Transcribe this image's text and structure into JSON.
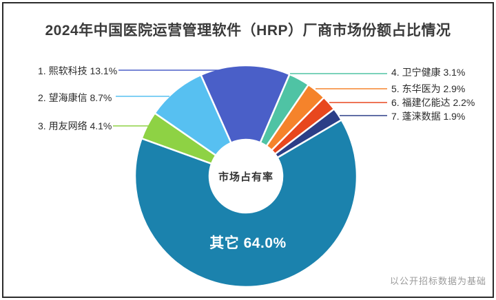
{
  "title": "2024年中国医院运营管理软件（HRP）厂商市场份额占比情况",
  "footnote": "以公开招标数据为基础",
  "chart_data": {
    "type": "pie",
    "donut": true,
    "title": "2024年中国医院运营管理软件（HRP）厂商市场份额占比情况",
    "center_label": "市场占有率",
    "inside_label": "其它 64.0%",
    "start_angle_deg": -24,
    "legend_position": "callouts",
    "slices": [
      {
        "name": "熙软科技",
        "value": 13.1,
        "color": "#4a5fc8"
      },
      {
        "name": "卫宁健康",
        "value": 3.1,
        "color": "#4fc3a4"
      },
      {
        "name": "东华医为",
        "value": 2.9,
        "color": "#f5832b"
      },
      {
        "name": "福建亿能达",
        "value": 2.2,
        "color": "#e8471e"
      },
      {
        "name": "蓬涞数据",
        "value": 1.9,
        "color": "#2c3e87"
      },
      {
        "name": "其它",
        "value": 64.0,
        "color": "#1b82ad"
      },
      {
        "name": "用友网络",
        "value": 4.1,
        "color": "#8ed244"
      },
      {
        "name": "望海康信",
        "value": 8.7,
        "color": "#57c0f1"
      }
    ],
    "callouts": [
      {
        "label": "1. 熙软科技 13.1%"
      },
      {
        "label": "2. 望海康信 8.7%"
      },
      {
        "label": "3. 用友网络 4.1%"
      },
      {
        "label": "4. 卫宁健康 3.1%"
      },
      {
        "label": "5. 东华医为 2.9%"
      },
      {
        "label": "6. 福建亿能达 2.2%"
      },
      {
        "label": "7. 蓬涞数据 1.9%"
      }
    ]
  }
}
